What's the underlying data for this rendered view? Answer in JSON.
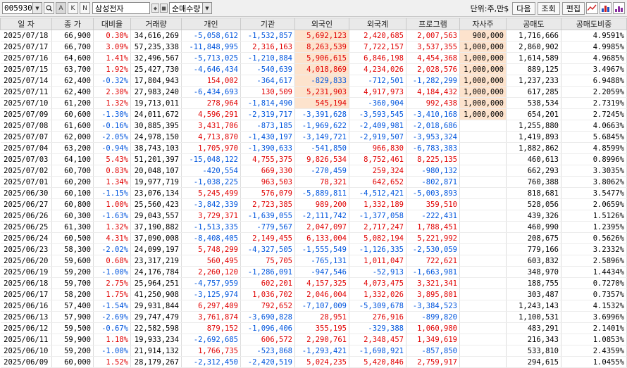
{
  "toolbar": {
    "code": "005930",
    "name": "삼성전자",
    "mode": "순매수량",
    "unit_label": "단위:주,만$",
    "btn_next": "다음",
    "btn_query": "조회",
    "btn_edit": "편집",
    "btn_a": "A",
    "btn_k": "K",
    "btn_n": "N"
  },
  "columns": [
    "일 자",
    "종 가",
    "대비율",
    "거래량",
    "개인",
    "기관",
    "외국인",
    "외국계",
    "프로그램",
    "자사주",
    "공매도",
    "공매도비중"
  ],
  "colors": {
    "positive": "#e00000",
    "negative": "#0055dd",
    "highlight": "#fde3cd"
  },
  "rows": [
    [
      "2025/07/18",
      "66,900",
      "0.30%",
      "34,616,269",
      "-5,058,612",
      "-1,532,857",
      "5,692,123",
      "2,420,685",
      "2,007,563",
      "900,000",
      "1,716,666",
      "4.9591%"
    ],
    [
      "2025/07/17",
      "66,700",
      "3.09%",
      "57,235,338",
      "-11,848,995",
      "2,316,163",
      "8,263,539",
      "7,722,157",
      "3,537,355",
      "1,000,000",
      "2,860,902",
      "4.9985%"
    ],
    [
      "2025/07/16",
      "64,600",
      "1.41%",
      "32,496,567",
      "-5,713,025",
      "-1,210,884",
      "5,906,615",
      "6,846,198",
      "4,454,368",
      "1,000,000",
      "1,614,589",
      "4.9685%"
    ],
    [
      "2025/07/15",
      "63,700",
      "1.92%",
      "25,427,730",
      "-4,646,434",
      "-540,639",
      "4,018,869",
      "4,234,026",
      "2,028,576",
      "1,000,000",
      "889,125",
      "3.4967%"
    ],
    [
      "2025/07/14",
      "62,400",
      "-0.32%",
      "17,804,943",
      "154,002",
      "-364,617",
      "-829,833",
      "-712,501",
      "-1,282,299",
      "1,000,000",
      "1,237,233",
      "6.9488%"
    ],
    [
      "2025/07/11",
      "62,400",
      "2.30%",
      "27,983,240",
      "-6,434,693",
      "130,509",
      "5,231,903",
      "4,917,973",
      "4,184,432",
      "1,000,000",
      "617,285",
      "2.2059%"
    ],
    [
      "2025/07/10",
      "61,200",
      "1.32%",
      "19,713,011",
      "278,964",
      "-1,814,490",
      "545,194",
      "-360,904",
      "992,438",
      "1,000,000",
      "538,534",
      "2.7319%"
    ],
    [
      "2025/07/09",
      "60,600",
      "-1.30%",
      "24,011,672",
      "4,596,291",
      "-2,319,717",
      "-3,391,628",
      "-3,593,545",
      "-3,410,168",
      "1,000,000",
      "654,201",
      "2.7245%"
    ],
    [
      "2025/07/08",
      "61,600",
      "-0.16%",
      "30,885,395",
      "3,431,706",
      "-873,185",
      "-1,969,622",
      "-2,409,981",
      "-2,018,686",
      "",
      "1,255,880",
      "4.0663%"
    ],
    [
      "2025/07/07",
      "62,000",
      "-2.05%",
      "24,978,150",
      "4,713,870",
      "-1,430,197",
      "-3,149,721",
      "-2,919,507",
      "-3,953,324",
      "",
      "1,419,893",
      "5.6845%"
    ],
    [
      "2025/07/04",
      "63,200",
      "-0.94%",
      "38,743,103",
      "1,705,970",
      "-1,390,633",
      "-541,850",
      "966,830",
      "-6,783,383",
      "",
      "1,882,862",
      "4.8599%"
    ],
    [
      "2025/07/03",
      "64,100",
      "5.43%",
      "51,201,397",
      "-15,048,122",
      "4,755,375",
      "9,826,534",
      "8,752,461",
      "8,225,135",
      "",
      "460,613",
      "0.8996%"
    ],
    [
      "2025/07/02",
      "60,700",
      "0.83%",
      "20,048,107",
      "-420,554",
      "669,330",
      "-270,459",
      "259,324",
      "-980,132",
      "",
      "662,293",
      "3.3035%"
    ],
    [
      "2025/07/01",
      "60,200",
      "1.34%",
      "19,977,719",
      "-1,038,225",
      "963,503",
      "78,321",
      "642,652",
      "-802,871",
      "",
      "760,388",
      "3.8062%"
    ],
    [
      "2025/06/30",
      "60,100",
      "-1.15%",
      "23,076,134",
      "5,245,499",
      "576,079",
      "-5,889,811",
      "-4,512,421",
      "-5,003,893",
      "",
      "818,681",
      "3.5477%"
    ],
    [
      "2025/06/27",
      "60,800",
      "1.00%",
      "25,560,423",
      "-3,842,339",
      "2,723,385",
      "989,200",
      "1,332,189",
      "359,510",
      "",
      "528,056",
      "2.0659%"
    ],
    [
      "2025/06/26",
      "60,300",
      "-1.63%",
      "29,043,557",
      "3,729,371",
      "-1,639,055",
      "-2,111,742",
      "-1,377,058",
      "-222,431",
      "",
      "439,326",
      "1.5126%"
    ],
    [
      "2025/06/25",
      "61,300",
      "1.32%",
      "37,190,882",
      "-1,513,335",
      "-779,567",
      "2,047,097",
      "2,717,247",
      "1,788,451",
      "",
      "460,990",
      "1.2395%"
    ],
    [
      "2025/06/24",
      "60,500",
      "4.31%",
      "37,090,008",
      "-8,408,405",
      "2,149,455",
      "6,133,004",
      "5,082,194",
      "5,221,992",
      "",
      "208,675",
      "0.5626%"
    ],
    [
      "2025/06/23",
      "58,300",
      "-2.02%",
      "24,099,197",
      "5,748,299",
      "-4,327,505",
      "-1,555,549",
      "-1,126,335",
      "-2,530,059",
      "",
      "779,166",
      "3.2332%"
    ],
    [
      "2025/06/20",
      "59,600",
      "0.68%",
      "23,317,219",
      "560,495",
      "75,705",
      "-765,131",
      "1,011,047",
      "722,621",
      "",
      "603,832",
      "2.5896%"
    ],
    [
      "2025/06/19",
      "59,200",
      "-1.00%",
      "24,176,784",
      "2,260,120",
      "-1,286,091",
      "-947,546",
      "-52,913",
      "-1,663,981",
      "",
      "348,970",
      "1.4434%"
    ],
    [
      "2025/06/18",
      "59,700",
      "2.75%",
      "25,964,251",
      "-4,757,959",
      "602,201",
      "4,157,325",
      "4,073,475",
      "3,321,341",
      "",
      "188,755",
      "0.7270%"
    ],
    [
      "2025/06/17",
      "58,200",
      "1.75%",
      "41,250,908",
      "-3,125,974",
      "1,036,702",
      "2,046,004",
      "1,332,026",
      "3,895,801",
      "",
      "303,487",
      "0.7357%"
    ],
    [
      "2025/06/16",
      "57,400",
      "-1.54%",
      "29,931,844",
      "6,297,409",
      "792,652",
      "-7,107,009",
      "-5,309,678",
      "-3,384,523",
      "",
      "1,243,143",
      "4.1532%"
    ],
    [
      "2025/06/13",
      "57,900",
      "-2.69%",
      "29,747,479",
      "3,761,874",
      "-3,690,828",
      "28,951",
      "276,916",
      "-899,820",
      "",
      "1,100,531",
      "3.6996%"
    ],
    [
      "2025/06/12",
      "59,500",
      "-0.67%",
      "22,582,598",
      "879,152",
      "-1,096,406",
      "355,195",
      "-329,388",
      "1,060,980",
      "",
      "483,291",
      "2.1401%"
    ],
    [
      "2025/06/11",
      "59,900",
      "1.18%",
      "19,933,234",
      "-2,692,685",
      "606,572",
      "2,290,761",
      "2,348,457",
      "1,349,619",
      "",
      "216,343",
      "1.0853%"
    ],
    [
      "2025/06/10",
      "59,200",
      "-1.00%",
      "21,914,132",
      "1,766,735",
      "-523,868",
      "-1,293,421",
      "-1,698,921",
      "-857,850",
      "",
      "533,810",
      "2.4359%"
    ],
    [
      "2025/06/09",
      "60,000",
      "1.52%",
      "28,179,267",
      "-2,312,450",
      "-2,420,519",
      "5,024,235",
      "5,420,846",
      "2,759,917",
      "",
      "294,615",
      "1.0455%"
    ]
  ]
}
